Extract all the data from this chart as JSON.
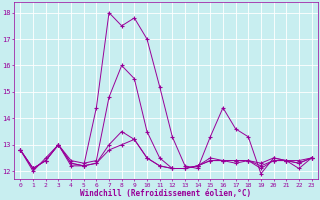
{
  "xlabel": "Windchill (Refroidissement éolien,°C)",
  "background_color": "#c8eef0",
  "grid_color": "#ffffff",
  "line_color": "#990099",
  "x_values": [
    0,
    1,
    2,
    3,
    4,
    5,
    6,
    7,
    8,
    9,
    10,
    11,
    12,
    13,
    14,
    15,
    16,
    17,
    18,
    19,
    20,
    21,
    22,
    23
  ],
  "series1": [
    12.8,
    12.0,
    12.5,
    13.0,
    12.2,
    12.2,
    14.4,
    18.0,
    17.5,
    17.8,
    17.0,
    15.2,
    13.3,
    12.2,
    12.1,
    13.3,
    14.4,
    13.6,
    13.3,
    11.9,
    12.5,
    12.4,
    12.1,
    12.5
  ],
  "series2": [
    12.8,
    12.1,
    12.4,
    13.0,
    12.4,
    12.3,
    12.4,
    14.8,
    16.0,
    15.5,
    13.5,
    12.5,
    12.1,
    12.1,
    12.2,
    12.5,
    12.4,
    12.4,
    12.4,
    12.3,
    12.5,
    12.4,
    12.4,
    12.5
  ],
  "series3": [
    12.8,
    12.1,
    12.4,
    13.0,
    12.3,
    12.2,
    12.3,
    13.0,
    13.5,
    13.2,
    12.5,
    12.2,
    12.1,
    12.1,
    12.2,
    12.4,
    12.4,
    12.4,
    12.4,
    12.2,
    12.4,
    12.4,
    12.3,
    12.5
  ],
  "series4": [
    12.8,
    12.1,
    12.4,
    13.0,
    12.3,
    12.2,
    12.3,
    12.8,
    13.0,
    13.2,
    12.5,
    12.2,
    12.1,
    12.1,
    12.2,
    12.4,
    12.4,
    12.3,
    12.4,
    12.1,
    12.4,
    12.4,
    12.3,
    12.5
  ],
  "ylim": [
    11.7,
    18.4
  ],
  "yticks": [
    12,
    13,
    14,
    15,
    16,
    17,
    18
  ],
  "xticks": [
    0,
    1,
    2,
    3,
    4,
    5,
    6,
    7,
    8,
    9,
    10,
    11,
    12,
    13,
    14,
    15,
    16,
    17,
    18,
    19,
    20,
    21,
    22,
    23
  ]
}
